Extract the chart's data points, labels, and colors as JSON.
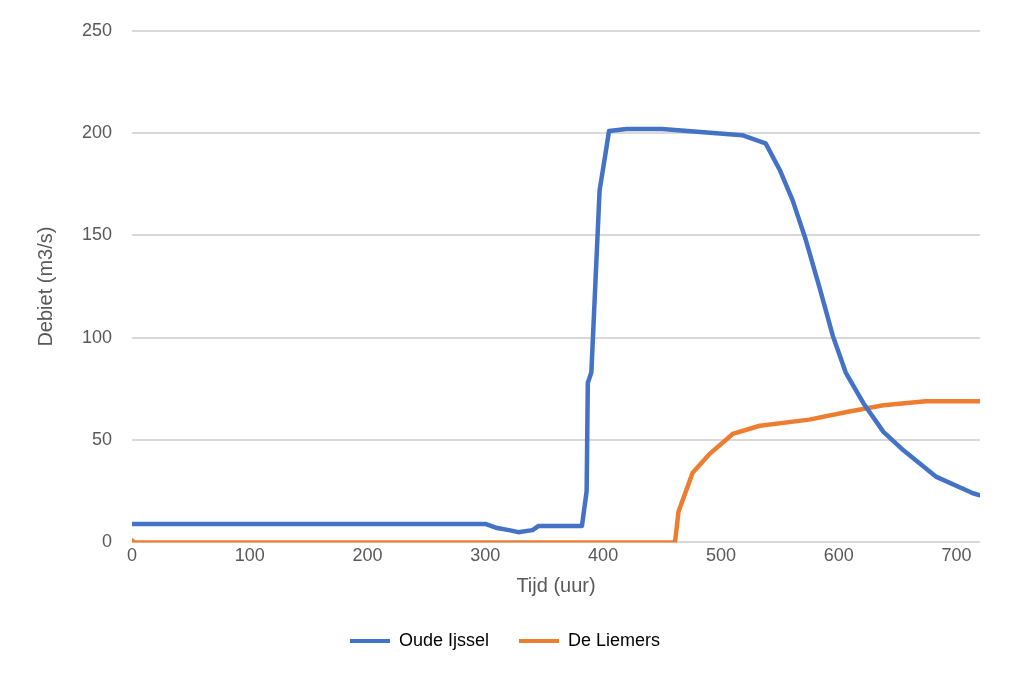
{
  "chart_data": {
    "type": "line",
    "xlabel": "Tijd (uur)",
    "ylabel": "Debiet (m3/s)",
    "xlim": [
      0,
      720
    ],
    "xticks": [
      0,
      100,
      200,
      300,
      400,
      500,
      600,
      700
    ],
    "ylim": [
      0,
      250
    ],
    "yticks": [
      0,
      50,
      100,
      150,
      200,
      250
    ],
    "grid": "y",
    "legend": "bottom",
    "marker": "none",
    "line_style": "solid",
    "series": [
      {
        "name": "Oude Ijssel",
        "color": "#4472c4",
        "x": [
          0,
          100,
          200,
          300,
          310,
          320,
          328,
          340,
          345,
          382,
          386,
          387,
          390,
          397,
          402,
          405,
          420,
          450,
          518,
          538,
          550,
          561,
          572,
          584,
          595,
          606,
          621,
          638,
          655,
          683,
          714,
          720
        ],
        "values": [
          9,
          9,
          9,
          9,
          7,
          6,
          5,
          6,
          8,
          8,
          25,
          78,
          83,
          172,
          190,
          201,
          202,
          202,
          199,
          195,
          182,
          167,
          148,
          124,
          101,
          83,
          68,
          54,
          45,
          32,
          24,
          23
        ]
      },
      {
        "name": "De Liemers",
        "color": "#ed7d31",
        "x": [
          0,
          2,
          100,
          300,
          461,
          464,
          476,
          490,
          510,
          533,
          575,
          609,
          638,
          674,
          714,
          720
        ],
        "values": [
          1,
          0,
          0,
          0,
          0,
          15,
          34,
          43,
          53,
          57,
          60,
          64,
          67,
          69,
          69,
          69
        ]
      }
    ]
  }
}
